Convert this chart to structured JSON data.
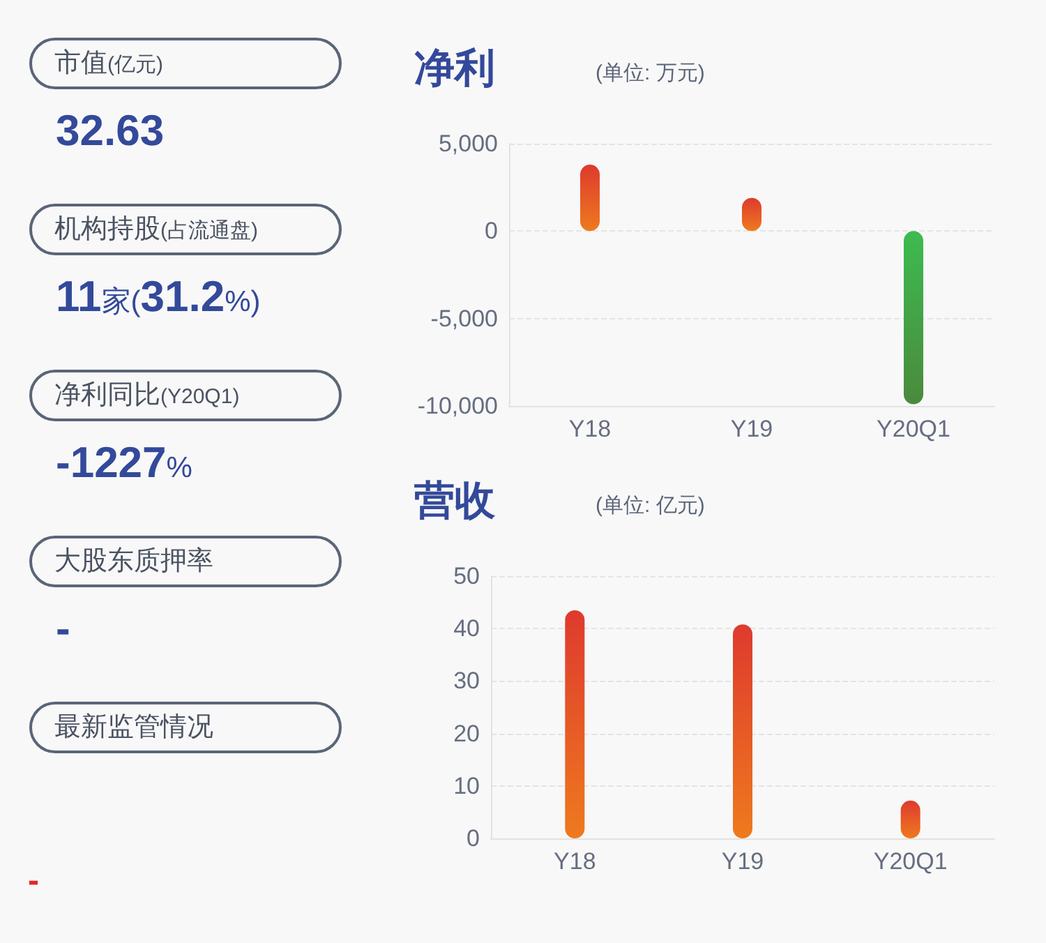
{
  "chart_data": [
    {
      "type": "other",
      "annotations": [
        "市值(亿元)",
        "32.63",
        "机构持股(占流通盘)",
        "11家(31.2%)",
        "净利同比(Y20Q1)",
        "-1227%",
        "大股东质押率",
        "-",
        "最新监管情况",
        "-"
      ]
    },
    {
      "type": "bar",
      "title": "净利",
      "subtitle": "(单位: 万元)",
      "categories": [
        "Y18",
        "Y19",
        "Y20Q1"
      ],
      "values": [
        3800,
        1900,
        -9900
      ],
      "colors": [
        "#de3a2e",
        "#de3a2e",
        "#3dbb50"
      ],
      "ylim": [
        -10000,
        5000
      ],
      "yticks": [
        {
          "value": -10000,
          "label": "-10,000"
        },
        {
          "value": -5000,
          "label": "-5,000"
        },
        0,
        {
          "value": 5000,
          "label": "5,000"
        }
      ],
      "grid": "y"
    },
    {
      "type": "bar",
      "title": "营收",
      "subtitle": "(单位: 亿元)",
      "categories": [
        "Y18",
        "Y19",
        "Y20Q1"
      ],
      "values": [
        43.5,
        40.8,
        7.2
      ],
      "colors": [
        "#de3a2e",
        "#de3a2e",
        "#de3a2e"
      ],
      "ylim": [
        0,
        50
      ],
      "yticks": [
        0,
        10,
        20,
        30,
        40,
        50
      ],
      "grid": "y"
    }
  ]
}
